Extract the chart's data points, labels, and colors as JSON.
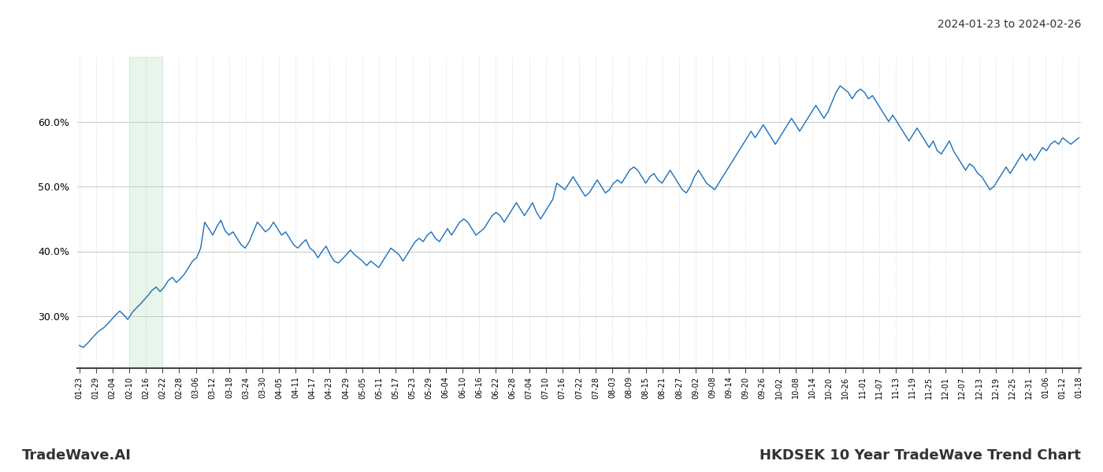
{
  "title_right": "2024-01-23 to 2024-02-26",
  "title_bottom_left": "TradeWave.AI",
  "title_bottom_right": "HKDSEK 10 Year TradeWave Trend Chart",
  "line_color": "#1a6fba",
  "shaded_region_color": "#d4edda",
  "shaded_region_alpha": 0.55,
  "background_color": "#ffffff",
  "grid_color": "#c8c8c8",
  "ylim": [
    22,
    70
  ],
  "yticks": [
    30.0,
    40.0,
    50.0,
    60.0
  ],
  "x_labels": [
    "01-23",
    "01-29",
    "02-04",
    "02-10",
    "02-16",
    "02-22",
    "02-28",
    "03-06",
    "03-12",
    "03-18",
    "03-24",
    "03-30",
    "04-05",
    "04-11",
    "04-17",
    "04-23",
    "04-29",
    "05-05",
    "05-11",
    "05-17",
    "05-23",
    "05-29",
    "06-04",
    "06-10",
    "06-16",
    "06-22",
    "06-28",
    "07-04",
    "07-10",
    "07-16",
    "07-22",
    "07-28",
    "08-03",
    "08-09",
    "08-15",
    "08-21",
    "08-27",
    "09-02",
    "09-08",
    "09-14",
    "09-20",
    "09-26",
    "10-02",
    "10-08",
    "10-14",
    "10-20",
    "10-26",
    "11-01",
    "11-07",
    "11-13",
    "11-19",
    "11-25",
    "12-01",
    "12-07",
    "12-13",
    "12-19",
    "12-25",
    "12-31",
    "01-06",
    "01-12",
    "01-18"
  ],
  "shaded_label_start": "02-10",
  "shaded_label_end": "02-22",
  "data_values": [
    25.5,
    25.2,
    25.8,
    26.5,
    27.2,
    27.8,
    28.2,
    28.8,
    29.5,
    30.2,
    30.8,
    30.2,
    29.5,
    30.5,
    31.2,
    31.8,
    32.5,
    33.2,
    34.0,
    34.5,
    33.8,
    34.5,
    35.5,
    36.0,
    35.2,
    35.8,
    36.5,
    37.5,
    38.5,
    39.0,
    40.5,
    44.5,
    43.5,
    42.5,
    43.8,
    44.8,
    43.2,
    42.5,
    43.0,
    42.0,
    41.0,
    40.5,
    41.5,
    43.0,
    44.5,
    43.8,
    43.0,
    43.5,
    44.5,
    43.5,
    42.5,
    43.0,
    42.0,
    41.0,
    40.5,
    41.2,
    41.8,
    40.5,
    40.0,
    39.0,
    40.0,
    40.8,
    39.5,
    38.5,
    38.2,
    38.8,
    39.5,
    40.2,
    39.5,
    39.0,
    38.5,
    37.8,
    38.5,
    38.0,
    37.5,
    38.5,
    39.5,
    40.5,
    40.0,
    39.5,
    38.5,
    39.5,
    40.5,
    41.5,
    42.0,
    41.5,
    42.5,
    43.0,
    42.0,
    41.5,
    42.5,
    43.5,
    42.5,
    43.5,
    44.5,
    45.0,
    44.5,
    43.5,
    42.5,
    43.0,
    43.5,
    44.5,
    45.5,
    46.0,
    45.5,
    44.5,
    45.5,
    46.5,
    47.5,
    46.5,
    45.5,
    46.5,
    47.5,
    46.0,
    45.0,
    46.0,
    47.0,
    48.0,
    50.5,
    50.0,
    49.5,
    50.5,
    51.5,
    50.5,
    49.5,
    48.5,
    49.0,
    50.0,
    51.0,
    50.0,
    49.0,
    49.5,
    50.5,
    51.0,
    50.5,
    51.5,
    52.5,
    53.0,
    52.5,
    51.5,
    50.5,
    51.5,
    52.0,
    51.0,
    50.5,
    51.5,
    52.5,
    51.5,
    50.5,
    49.5,
    49.0,
    50.0,
    51.5,
    52.5,
    51.5,
    50.5,
    50.0,
    49.5,
    50.5,
    51.5,
    52.5,
    53.5,
    54.5,
    55.5,
    56.5,
    57.5,
    58.5,
    57.5,
    58.5,
    59.5,
    58.5,
    57.5,
    56.5,
    57.5,
    58.5,
    59.5,
    60.5,
    59.5,
    58.5,
    59.5,
    60.5,
    61.5,
    62.5,
    61.5,
    60.5,
    61.5,
    63.0,
    64.5,
    65.5,
    65.0,
    64.5,
    63.5,
    64.5,
    65.0,
    64.5,
    63.5,
    64.0,
    63.0,
    62.0,
    61.0,
    60.0,
    61.0,
    60.0,
    59.0,
    58.0,
    57.0,
    58.0,
    59.0,
    58.0,
    57.0,
    56.0,
    57.0,
    55.5,
    55.0,
    56.0,
    57.0,
    55.5,
    54.5,
    53.5,
    52.5,
    53.5,
    53.0,
    52.0,
    51.5,
    50.5,
    49.5,
    50.0,
    51.0,
    52.0,
    53.0,
    52.0,
    53.0,
    54.0,
    55.0,
    54.0,
    55.0,
    54.0,
    55.0,
    56.0,
    55.5,
    56.5,
    57.0,
    56.5,
    57.5,
    57.0,
    56.5,
    57.0,
    57.5
  ]
}
